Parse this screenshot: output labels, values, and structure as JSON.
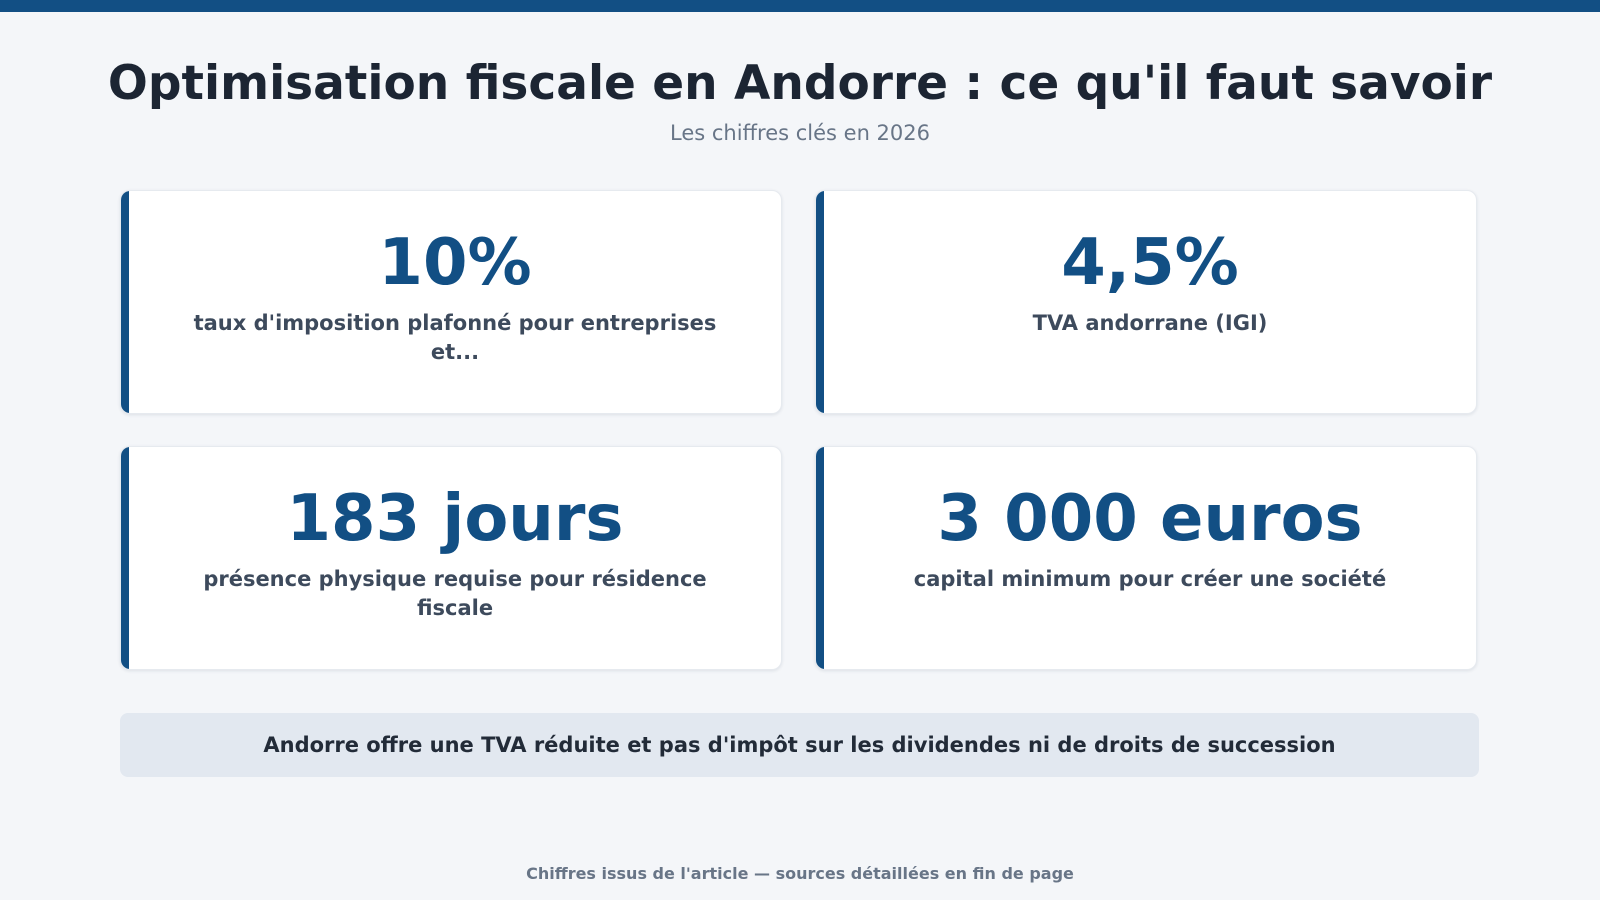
{
  "header": {
    "title": "Optimisation fiscale en Andorre : ce qu'il faut savoir",
    "subtitle": "Les chiffres clés en 2026"
  },
  "stats": [
    {
      "value": "10%",
      "label": "taux d'imposition plafonné pour entreprises et..."
    },
    {
      "value": "4,5%",
      "label": "TVA andorrane (IGI)"
    },
    {
      "value": "183 jours",
      "label": "présence physique requise pour résidence fiscale"
    },
    {
      "value": "3 000 euros",
      "label": "capital minimum pour créer une société"
    }
  ],
  "highlight": "Andorre offre une TVA réduite et pas d'impôt sur les dividendes ni de droits de succession",
  "footer": "Chiffres issus de l'article — sources détaillées en fin de page",
  "colors": {
    "accent": "#124f84",
    "background": "#f4f6f9",
    "highlight_bg": "#e2e8f0"
  }
}
